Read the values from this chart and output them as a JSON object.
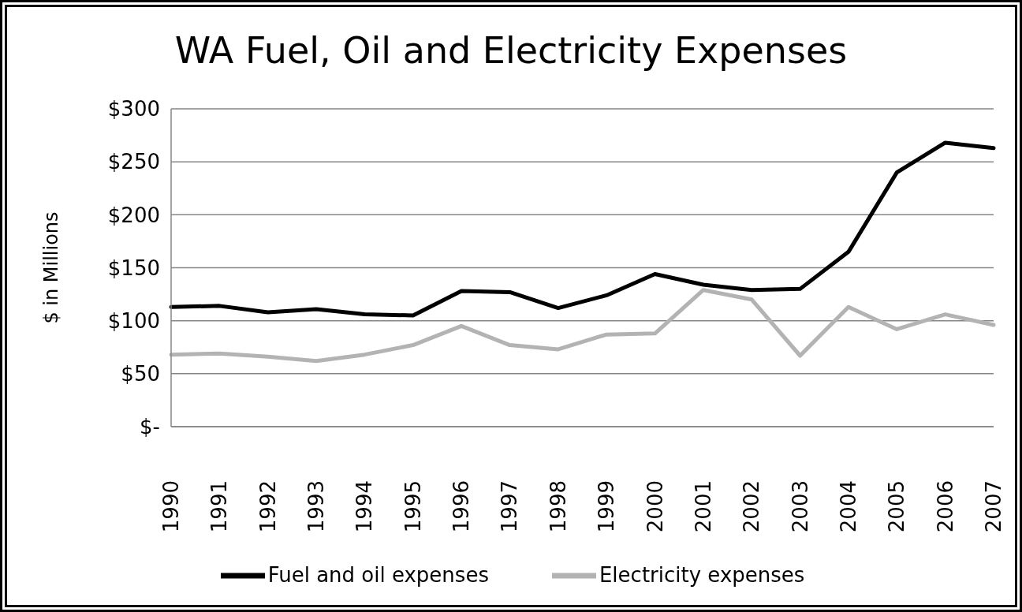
{
  "chart_data": {
    "type": "line",
    "title": "WA Fuel, Oil and Electricity Expenses",
    "ylabel": "$ in Millions",
    "categories": [
      "1990",
      "1991",
      "1992",
      "1993",
      "1994",
      "1995",
      "1996",
      "1997",
      "1998",
      "1999",
      "2000",
      "2001",
      "2002",
      "2003",
      "2004",
      "2005",
      "2006",
      "2007"
    ],
    "series": [
      {
        "name": "Fuel and oil expenses",
        "color": "#000000",
        "values": [
          113,
          114,
          108,
          111,
          106,
          105,
          128,
          127,
          112,
          124,
          144,
          134,
          129,
          130,
          165,
          240,
          268,
          263
        ]
      },
      {
        "name": "Electricity expenses",
        "color": "#b3b3b3",
        "values": [
          68,
          69,
          66,
          62,
          68,
          77,
          95,
          77,
          73,
          87,
          88,
          129,
          120,
          67,
          113,
          92,
          106,
          96
        ]
      }
    ],
    "ylim": [
      0,
      300
    ],
    "yticks": [
      {
        "value": 0,
        "label": "$-"
      },
      {
        "value": 50,
        "label": "$50"
      },
      {
        "value": 100,
        "label": "$100"
      },
      {
        "value": 150,
        "label": "$150"
      },
      {
        "value": 200,
        "label": "$200"
      },
      {
        "value": 250,
        "label": "$250"
      },
      {
        "value": 300,
        "label": "$300"
      }
    ],
    "grid": "y",
    "legend": "bottom",
    "marker": "none"
  }
}
